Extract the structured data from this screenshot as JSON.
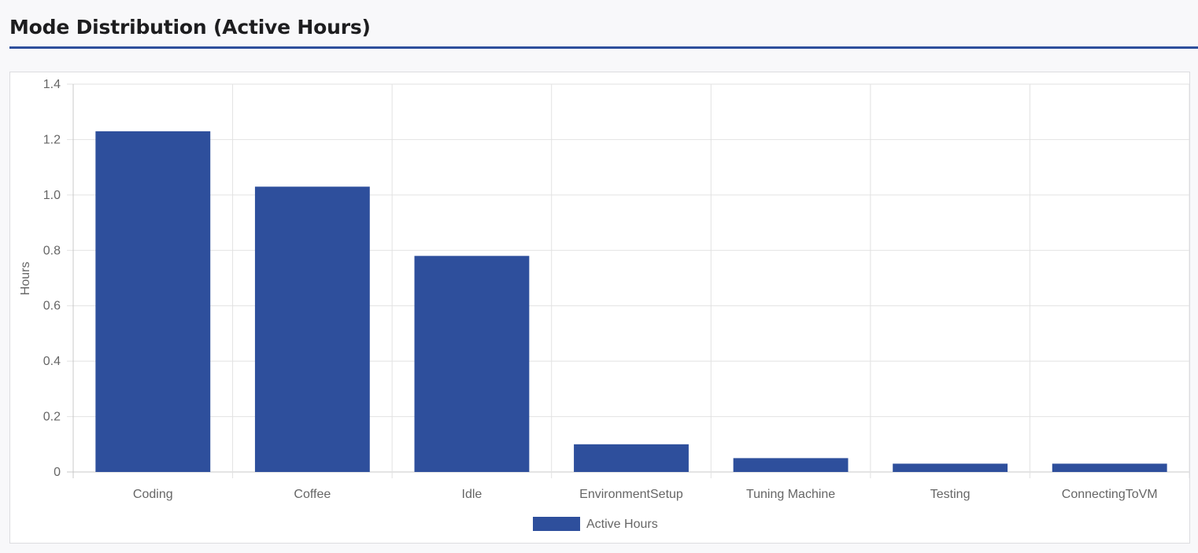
{
  "page": {
    "title": "Mode Distribution (Active Hours)"
  },
  "chart_data": {
    "type": "bar",
    "categories": [
      "Coding",
      "Coffee",
      "Idle",
      "EnvironmentSetup",
      "Tuning Machine",
      "Testing",
      "ConnectingToVM"
    ],
    "series": [
      {
        "name": "Active Hours",
        "values": [
          1.23,
          1.03,
          0.78,
          0.1,
          0.05,
          0.03,
          0.03
        ],
        "color": "#2e4f9c"
      }
    ],
    "xlabel": "",
    "ylabel": "Hours",
    "ylim": [
      0,
      1.4
    ],
    "yticks": [
      "0",
      "0.2",
      "0.4",
      "0.6",
      "0.8",
      "1.0",
      "1.2",
      "1.4"
    ],
    "grid": true,
    "legend_position": "bottom"
  }
}
